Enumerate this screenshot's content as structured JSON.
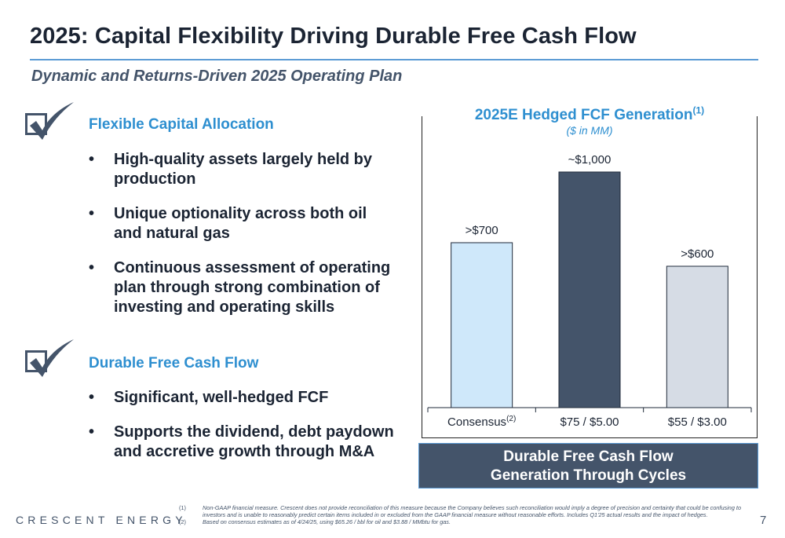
{
  "title": "2025: Capital Flexibility Driving Durable Free Cash Flow",
  "subtitle": "Dynamic and Returns-Driven 2025 Operating Plan",
  "sections": [
    {
      "heading": "Flexible Capital Allocation",
      "bullets": [
        "High-quality assets largely held by production",
        "Unique optionality across both oil and natural gas",
        "Continuous assessment of operating plan through strong combination of investing and operating skills"
      ]
    },
    {
      "heading": "Durable Free Cash Flow",
      "bullets": [
        "Significant, well-hedged FCF",
        "Supports the dividend, debt paydown and accretive growth through M&A"
      ]
    }
  ],
  "bullet_char": "•",
  "chart_data": {
    "type": "bar",
    "title": "2025E Hedged FCF Generation",
    "title_superscript": "(1)",
    "unit": "($ in MM)",
    "categories": [
      "Consensus",
      "$75 / $5.00",
      "$55 / $3.00"
    ],
    "category_superscripts": [
      "(2)",
      "",
      ""
    ],
    "values": [
      700,
      1000,
      600
    ],
    "data_labels": [
      ">$700",
      "~$1,000",
      ">$600"
    ],
    "colors": [
      "#cfe8fa",
      "#44546a",
      "#d6dce5"
    ],
    "ylim": [
      0,
      1200
    ],
    "grid": false
  },
  "banner": {
    "line1": "Durable Free Cash Flow",
    "line2": "Generation Through Cycles"
  },
  "logo": "CRESCENT ENERGY",
  "footnotes": [
    {
      "num": "(1)",
      "text": "Non-GAAP financial measure. Crescent does not provide reconciliation of this measure because the Company believes such reconciliation would imply a degree of precision and certainty that could be confusing to investors and is unable to reasonably predict certain items included in or excluded from the GAAP financial measure without reasonable efforts. Includes Q1'25 actual results and the impact of hedges."
    },
    {
      "num": "(2)",
      "text": "Based on consensus estimates as of 4/24/25, using $65.26 / bbl for oil and $3.88 / MMbtu for gas."
    }
  ],
  "page_number": "7",
  "colors": {
    "accent_blue": "#2e8fd0",
    "slate": "#44546a",
    "rule": "#5b9bd5"
  }
}
